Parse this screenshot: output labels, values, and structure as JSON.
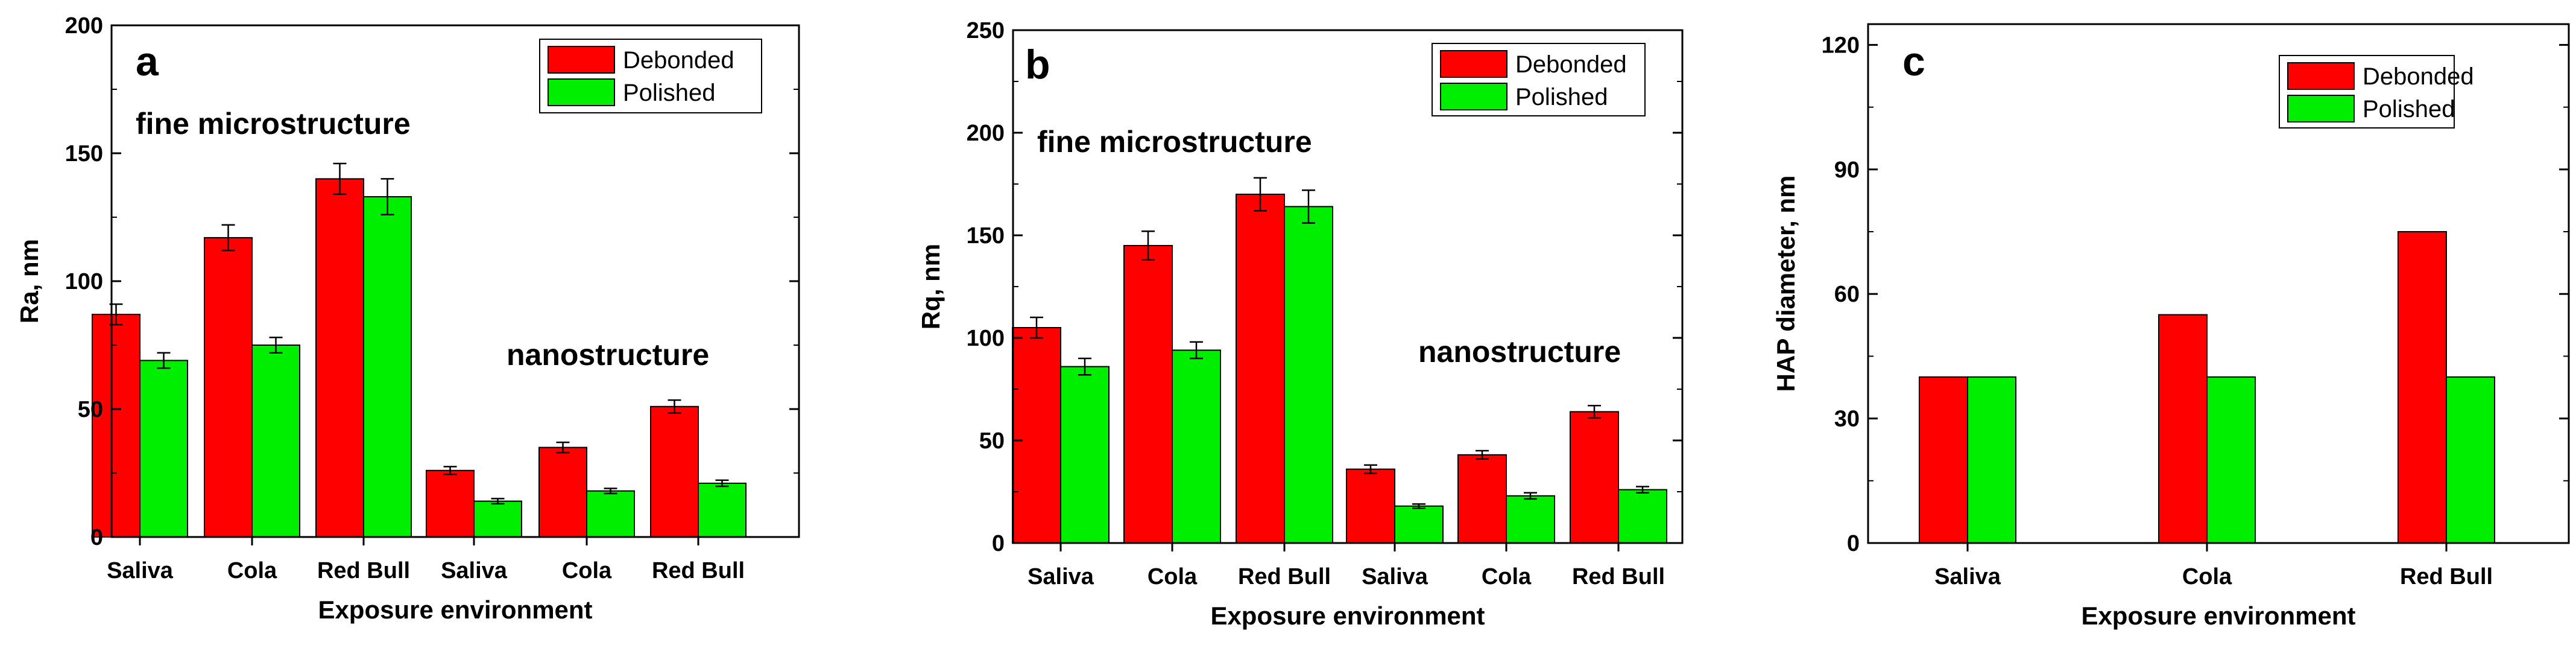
{
  "chart_data": [
    {
      "panel": "a",
      "type": "bar",
      "categories": [
        "Saliva",
        "Cola",
        "Red Bull",
        "Saliva",
        "Cola",
        "Red Bull"
      ],
      "series": [
        {
          "name": "Debonded",
          "color": "#ff0000",
          "values": [
            87,
            117,
            140,
            26,
            35,
            51
          ],
          "errors": [
            4,
            5,
            6,
            1.5,
            2,
            2.5
          ]
        },
        {
          "name": "Polished",
          "color": "#00ee00",
          "values": [
            69,
            75,
            133,
            14,
            18,
            21
          ],
          "errors": [
            3,
            3,
            7,
            1,
            1,
            1.2
          ]
        }
      ],
      "xlabel": "Exposure environment",
      "ylabel": "Ra, nm",
      "ylim": [
        0,
        200
      ],
      "yticks": [
        0,
        50,
        100,
        150,
        200
      ],
      "annotations": [
        "fine microstructure",
        "nanostructure"
      ]
    },
    {
      "panel": "b",
      "type": "bar",
      "categories": [
        "Saliva",
        "Cola",
        "Red Bull",
        "Saliva",
        "Cola",
        "Red Bull"
      ],
      "series": [
        {
          "name": "Debonded",
          "color": "#ff0000",
          "values": [
            105,
            145,
            170,
            36,
            43,
            64
          ],
          "errors": [
            5,
            7,
            8,
            2,
            2,
            3
          ]
        },
        {
          "name": "Polished",
          "color": "#00ee00",
          "values": [
            86,
            94,
            164,
            18,
            23,
            26
          ],
          "errors": [
            4,
            4,
            8,
            1,
            1.5,
            1.5
          ]
        }
      ],
      "xlabel": "Exposure environment",
      "ylabel": "Rq, nm",
      "ylim": [
        0,
        250
      ],
      "yticks": [
        0,
        50,
        100,
        150,
        200,
        250
      ],
      "annotations": [
        "fine microstructure",
        "nanostructure"
      ]
    },
    {
      "panel": "c",
      "type": "bar",
      "categories": [
        "Saliva",
        "Cola",
        "Red Bull"
      ],
      "series": [
        {
          "name": "Debonded",
          "color": "#ff0000",
          "values": [
            40,
            55,
            75
          ]
        },
        {
          "name": "Polished",
          "color": "#00ee00",
          "values": [
            40,
            40,
            40
          ]
        }
      ],
      "xlabel": "Exposure environment",
      "ylabel": "HAP diameter, nm",
      "ylim": [
        0,
        125
      ],
      "yticks": [
        0,
        30,
        60,
        90,
        120
      ],
      "annotations": []
    }
  ]
}
